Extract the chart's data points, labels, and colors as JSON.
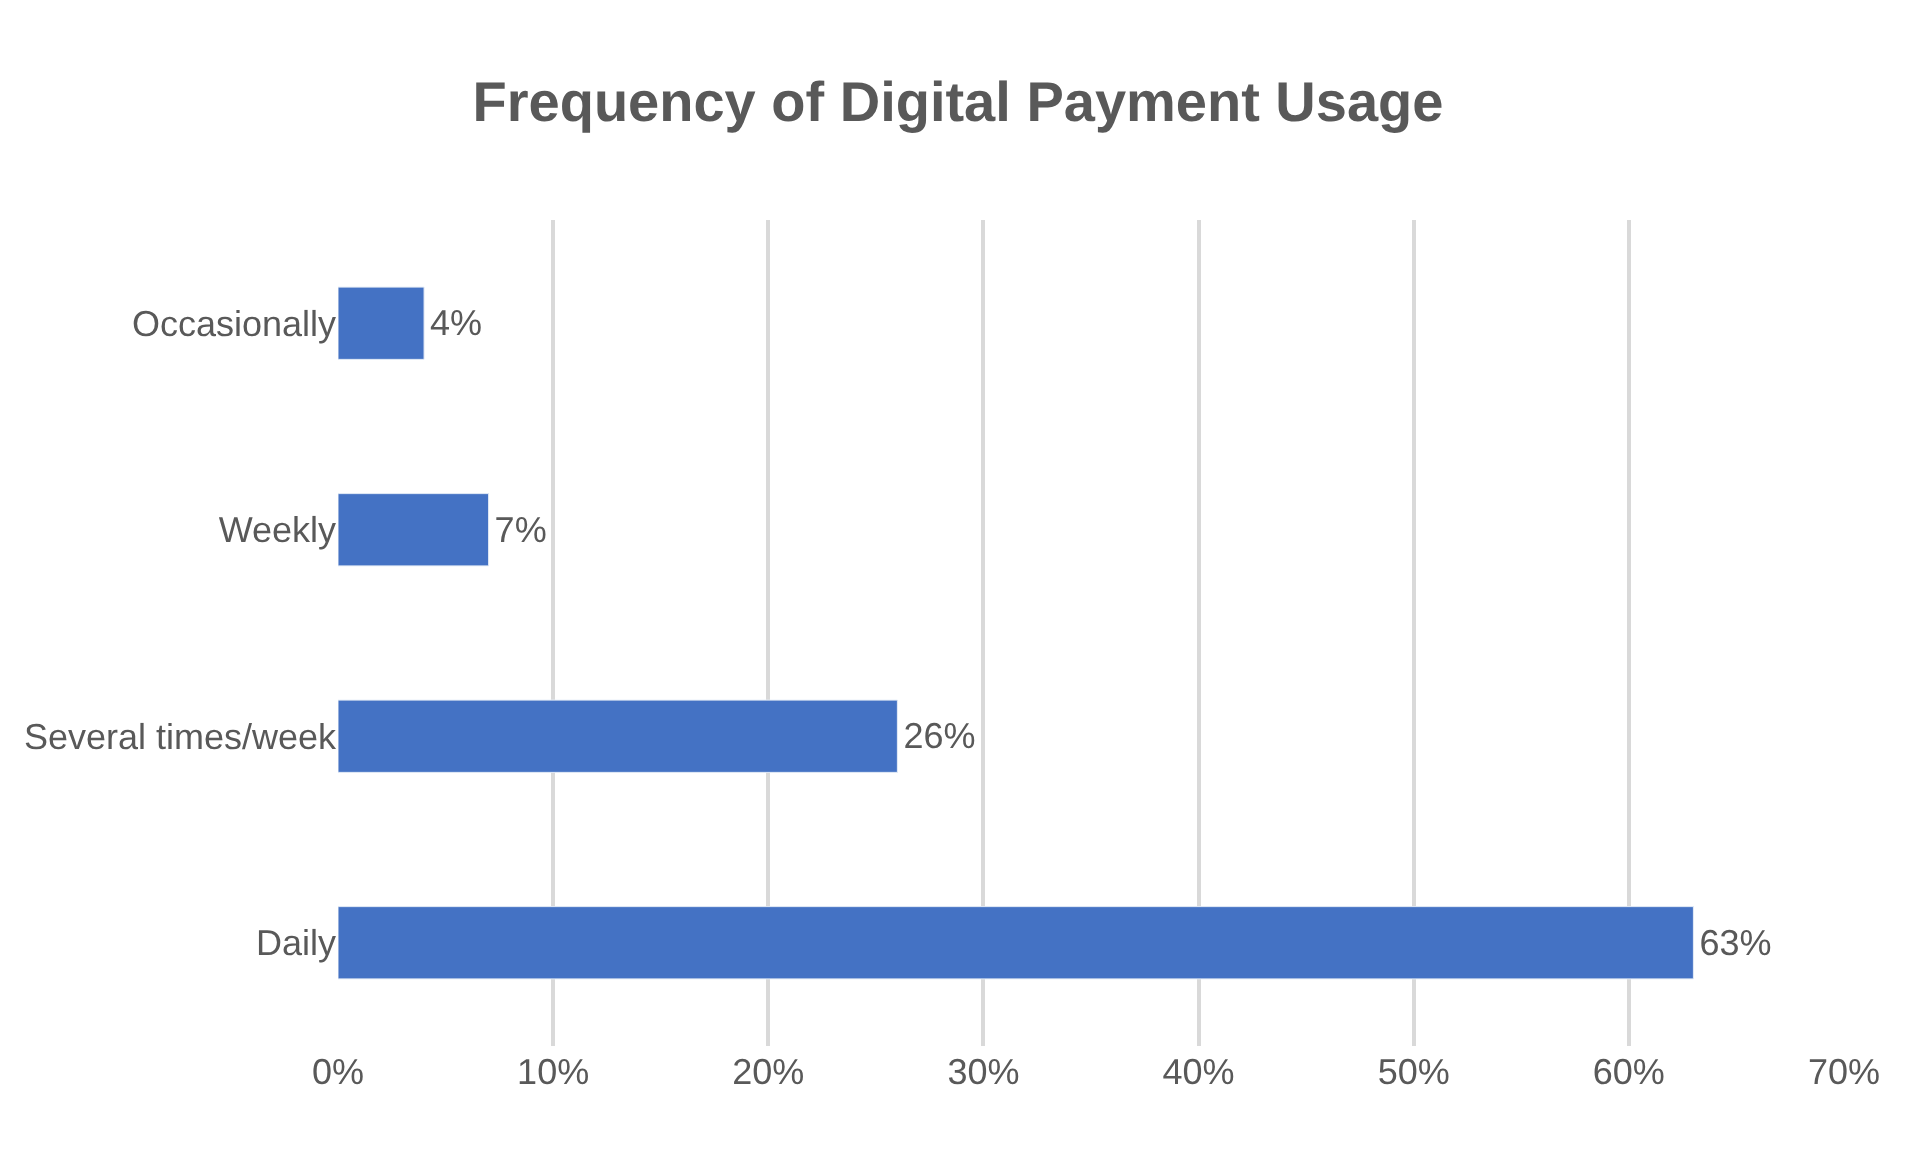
{
  "chart_data": {
    "type": "bar",
    "orientation": "horizontal",
    "title": "Frequency of Digital Payment Usage",
    "categories": [
      "Occasionally",
      "Weekly",
      "Several times/week",
      "Daily"
    ],
    "values": [
      4,
      7,
      26,
      63
    ],
    "value_labels": [
      "4%",
      "7%",
      "26%",
      "63%"
    ],
    "color": "#4472c4",
    "xlim": [
      0,
      70
    ],
    "xticks": [
      {
        "value": 0,
        "label": "0%"
      },
      {
        "value": 10,
        "label": "10%"
      },
      {
        "value": 20,
        "label": "20%"
      },
      {
        "value": 30,
        "label": "30%"
      },
      {
        "value": 40,
        "label": "40%"
      },
      {
        "value": 50,
        "label": "50%"
      },
      {
        "value": 60,
        "label": "60%"
      },
      {
        "value": 70,
        "label": "70%"
      }
    ],
    "grid": "x",
    "legend": false
  }
}
